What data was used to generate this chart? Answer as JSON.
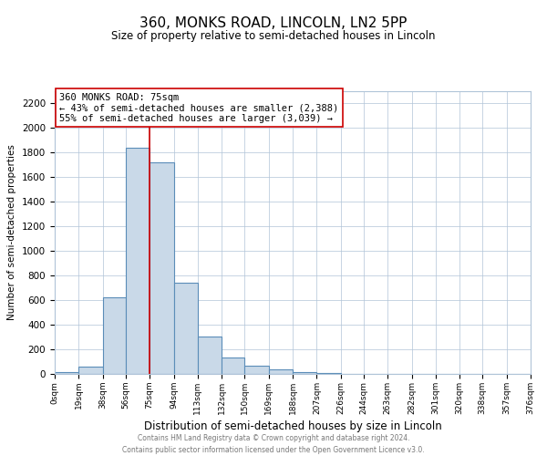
{
  "title": "360, MONKS ROAD, LINCOLN, LN2 5PP",
  "subtitle": "Size of property relative to semi-detached houses in Lincoln",
  "xlabel": "Distribution of semi-detached houses by size in Lincoln",
  "ylabel": "Number of semi-detached properties",
  "bin_edges": [
    0,
    19,
    38,
    56,
    75,
    94,
    113,
    132,
    150,
    169,
    188,
    207,
    226,
    244,
    263,
    282,
    301,
    320,
    338,
    357,
    376
  ],
  "bin_counts": [
    15,
    60,
    625,
    1840,
    1725,
    740,
    305,
    130,
    70,
    40,
    15,
    5,
    2,
    2,
    1,
    0,
    1,
    0,
    0,
    0
  ],
  "bar_facecolor": "#c9d9e8",
  "bar_edgecolor": "#5b8db8",
  "bar_linewidth": 0.8,
  "grid_color": "#b0c4d8",
  "grid_linewidth": 0.5,
  "bg_color": "#ffffff",
  "vline_x": 75,
  "vline_color": "#cc0000",
  "vline_linewidth": 1.2,
  "annotation_box_title": "360 MONKS ROAD: 75sqm",
  "annotation_line1": "← 43% of semi-detached houses are smaller (2,388)",
  "annotation_line2": "55% of semi-detached houses are larger (3,039) →",
  "annotation_box_edgecolor": "#cc0000",
  "annotation_box_facecolor": "#ffffff",
  "ylim": [
    0,
    2300
  ],
  "yticks": [
    0,
    200,
    400,
    600,
    800,
    1000,
    1200,
    1400,
    1600,
    1800,
    2000,
    2200
  ],
  "xtick_labels": [
    "0sqm",
    "19sqm",
    "38sqm",
    "56sqm",
    "75sqm",
    "94sqm",
    "113sqm",
    "132sqm",
    "150sqm",
    "169sqm",
    "188sqm",
    "207sqm",
    "226sqm",
    "244sqm",
    "263sqm",
    "282sqm",
    "301sqm",
    "320sqm",
    "338sqm",
    "357sqm",
    "376sqm"
  ],
  "footer_line1": "Contains HM Land Registry data © Crown copyright and database right 2024.",
  "footer_line2": "Contains public sector information licensed under the Open Government Licence v3.0.",
  "title_fontsize": 11,
  "subtitle_fontsize": 8.5,
  "xlabel_fontsize": 8.5,
  "ylabel_fontsize": 7.5,
  "xtick_fontsize": 6.5,
  "ytick_fontsize": 7.5,
  "annotation_fontsize": 7.5,
  "footer_fontsize": 5.5
}
